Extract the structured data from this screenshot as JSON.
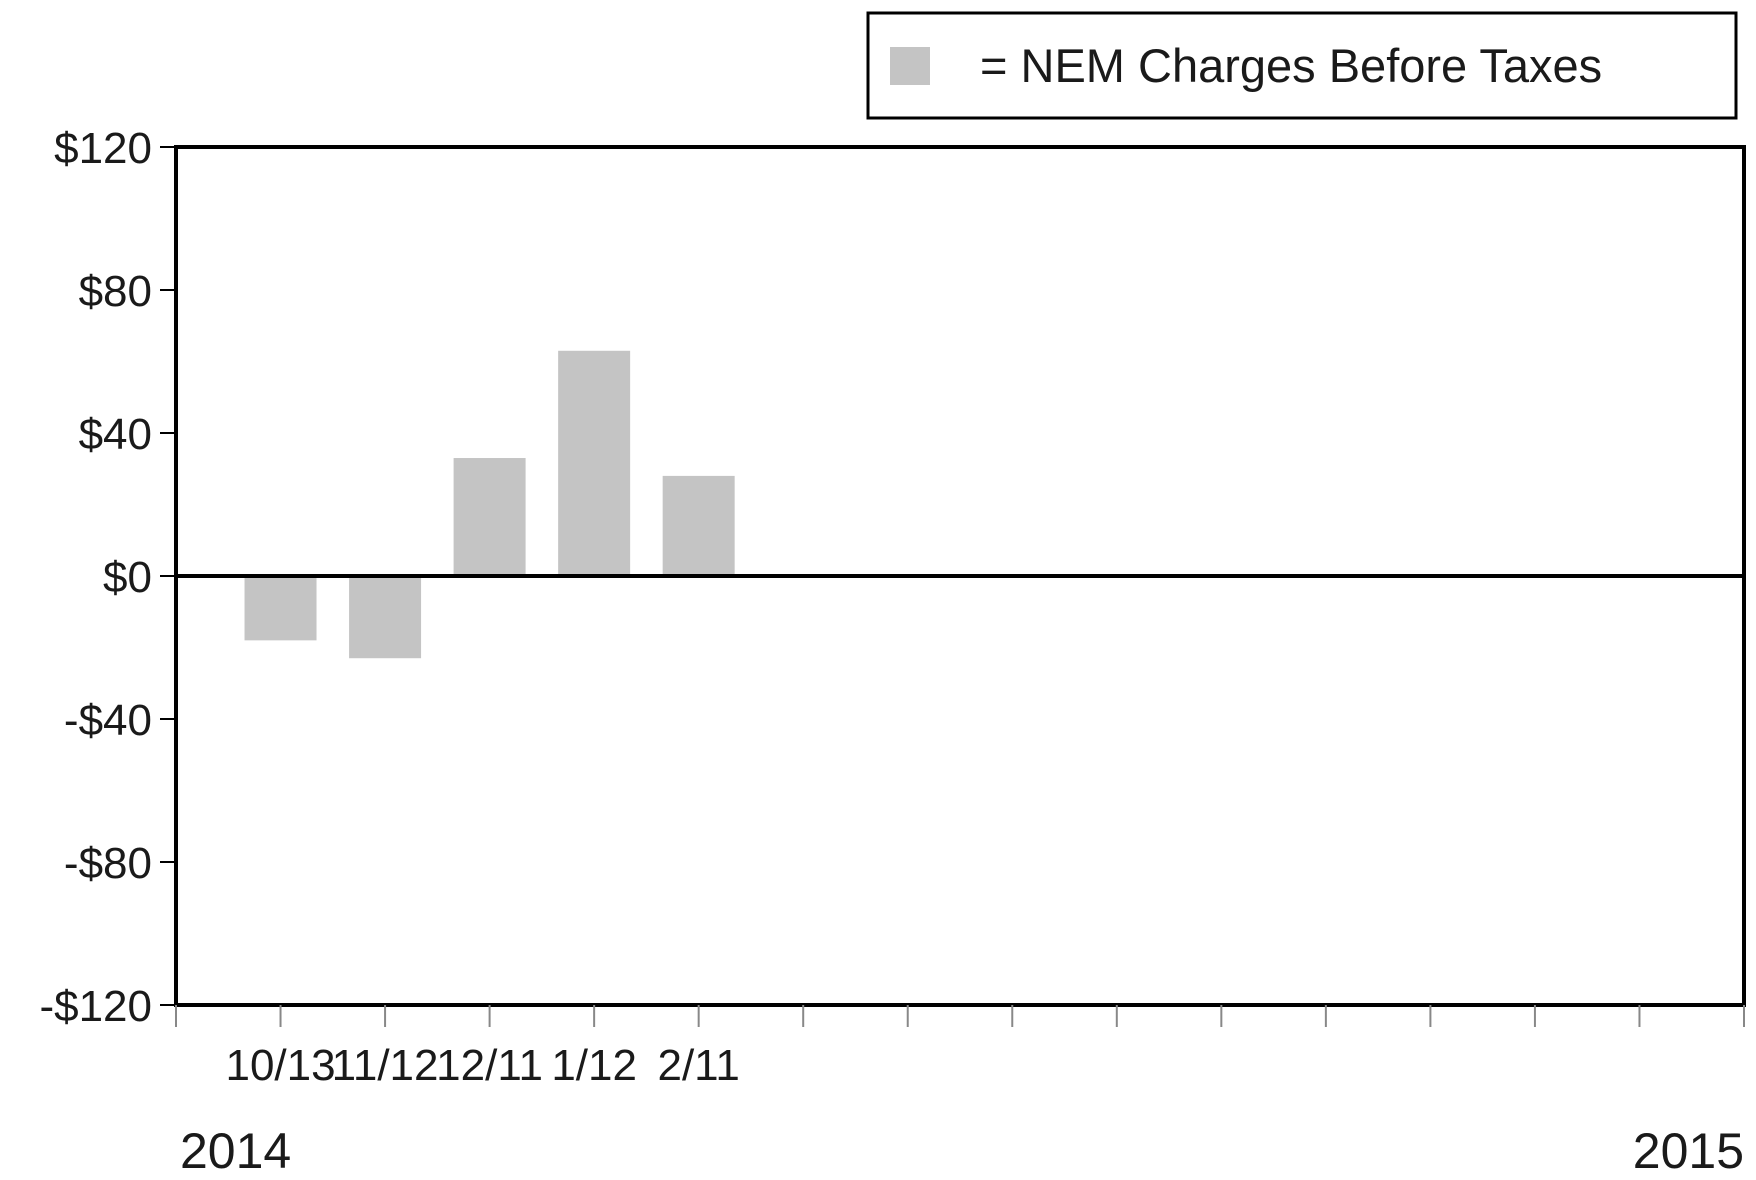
{
  "chart_data": {
    "type": "bar",
    "categories": [
      "10/13",
      "11/12",
      "12/11",
      "1/12",
      "2/11"
    ],
    "series": [
      {
        "name": "= NEM Charges Before Taxes",
        "values": [
          -18,
          -23,
          33,
          63,
          28
        ],
        "color": "#c4c4c4"
      }
    ],
    "title": "",
    "xlabel": "",
    "ylabel": "",
    "ylim": [
      -120,
      120
    ],
    "yticks": [
      120,
      80,
      40,
      0,
      -40,
      -80,
      -120
    ],
    "ytick_labels": [
      "$120",
      "$80",
      "$40",
      "$0",
      "-$40",
      "-$80",
      "-$120"
    ],
    "x_slot_count": 15,
    "year_labels": {
      "start": "2014",
      "end": "2015"
    },
    "legend": {
      "position": "top-right",
      "label": "= NEM Charges Before Taxes"
    },
    "grid": false,
    "zero_line": true,
    "colors": {
      "bar": "#c4c4c4",
      "axis": "#000000",
      "text": "#1a1a1a"
    }
  }
}
